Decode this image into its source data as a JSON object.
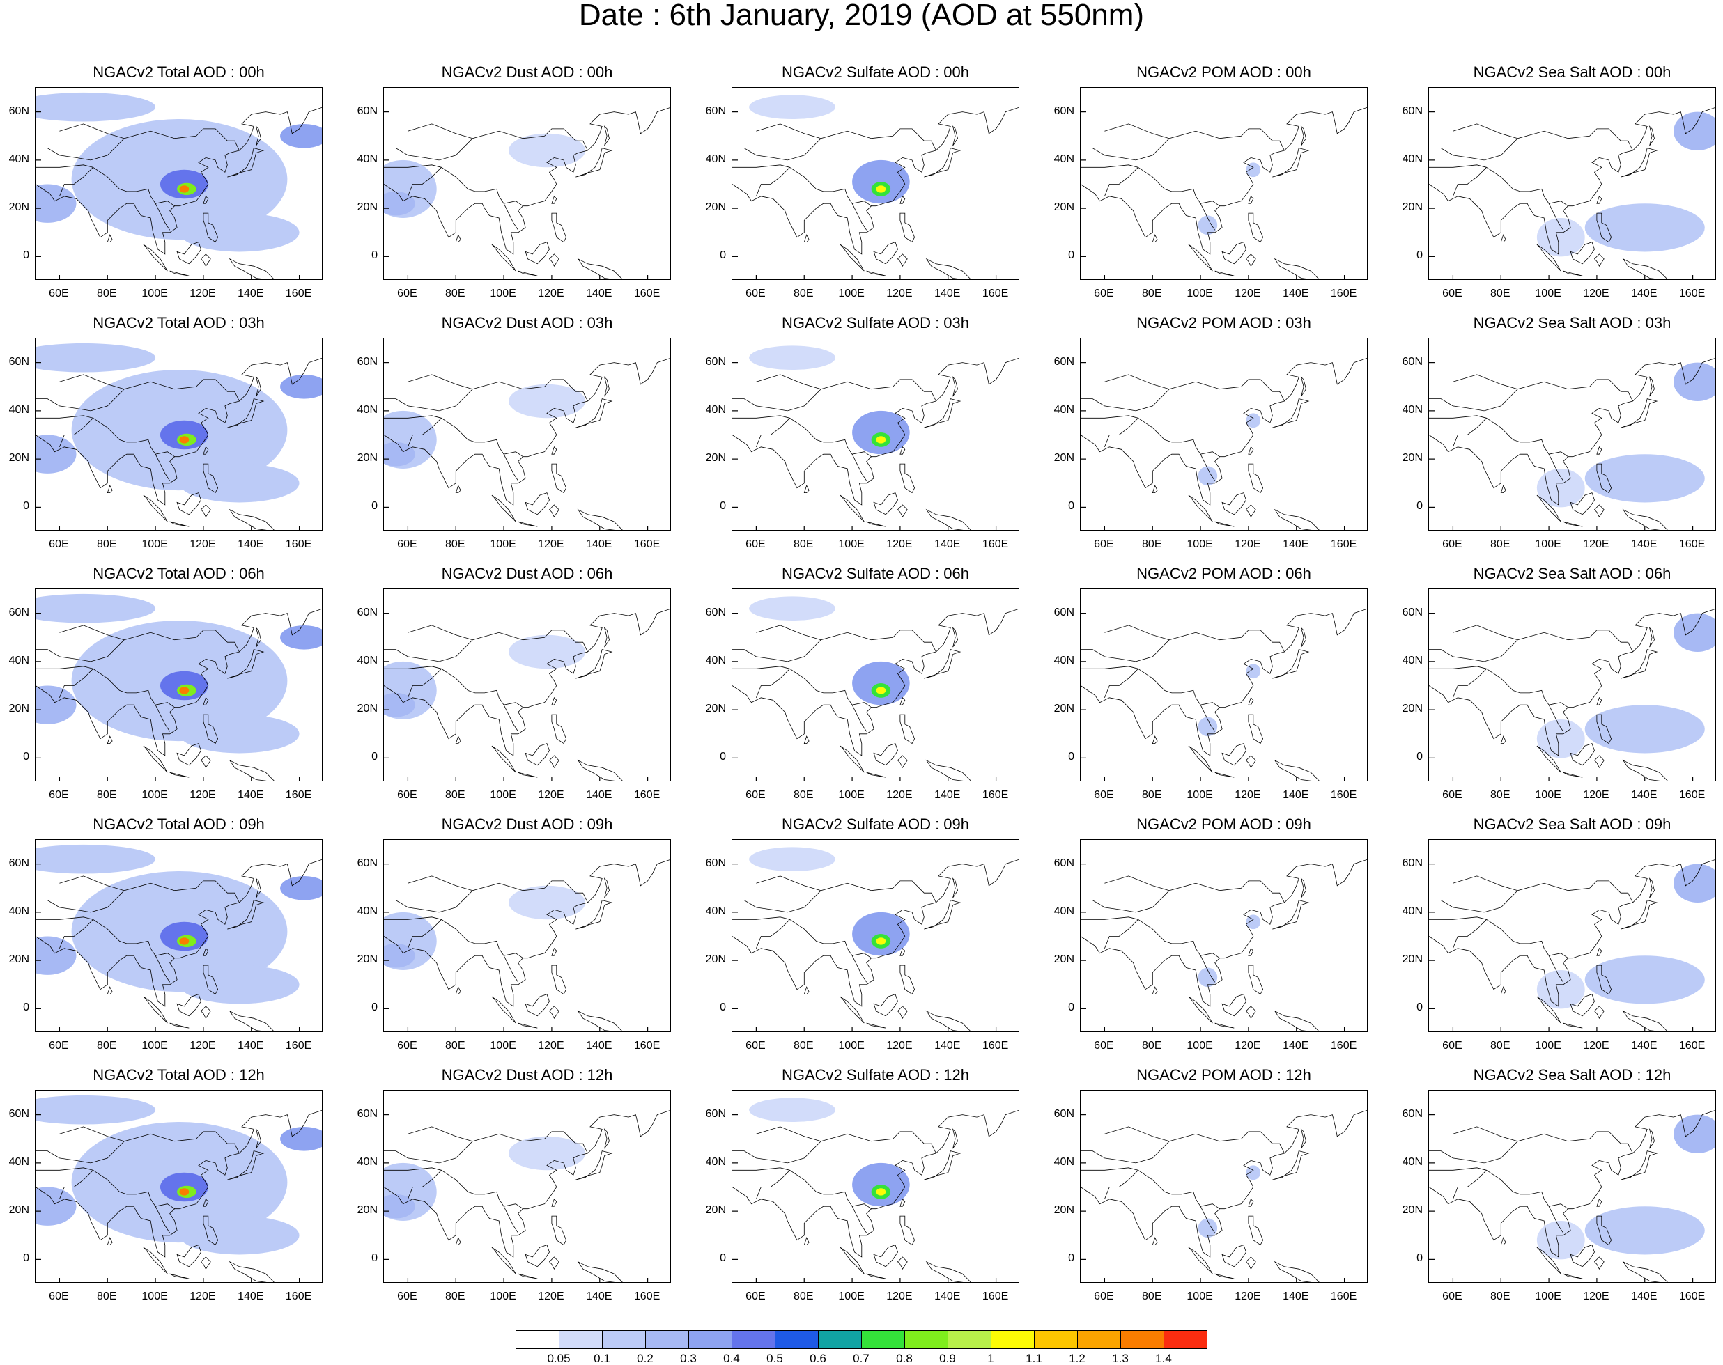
{
  "title": "Date : 6th January, 2019 (AOD at 550nm)",
  "chart_data": {
    "type": "heatmap",
    "grid": {
      "columns": [
        "Total",
        "Dust",
        "Sulfate",
        "POM",
        "Sea Salt"
      ],
      "rows": [
        "00h",
        "03h",
        "06h",
        "09h",
        "12h"
      ]
    },
    "panel_titles": [
      [
        "NGACv2 Total AOD : 00h",
        "NGACv2 Dust AOD : 00h",
        "NGACv2 Sulfate AOD : 00h",
        "NGACv2 POM AOD : 00h",
        "NGACv2 Sea Salt AOD : 00h"
      ],
      [
        "NGACv2 Total AOD : 03h",
        "NGACv2 Dust AOD : 03h",
        "NGACv2 Sulfate AOD : 03h",
        "NGACv2 POM AOD : 03h",
        "NGACv2 Sea Salt AOD : 03h"
      ],
      [
        "NGACv2 Total AOD : 06h",
        "NGACv2 Dust AOD : 06h",
        "NGACv2 Sulfate AOD : 06h",
        "NGACv2 POM AOD : 06h",
        "NGACv2 Sea Salt AOD : 06h"
      ],
      [
        "NGACv2 Total AOD : 09h",
        "NGACv2 Dust AOD : 09h",
        "NGACv2 Sulfate AOD : 09h",
        "NGACv2 POM AOD : 09h",
        "NGACv2 Sea Salt  AOD : 09h"
      ],
      [
        "NGACv2 Total AOD  : 12h",
        "NGACv2 Dust AOD : 12h",
        "NGACv2 Sulfate AOD : 12h",
        "NGACv2 POM  AOD : 12h",
        "NGACv2 Sea Salt  AOD : 12h"
      ]
    ],
    "x_ticks": [
      "60E",
      "80E",
      "100E",
      "120E",
      "140E",
      "160E"
    ],
    "x_tick_values": [
      60,
      80,
      100,
      120,
      140,
      160
    ],
    "y_ticks": [
      "60N",
      "40N",
      "20N",
      "0"
    ],
    "y_tick_values": [
      60,
      40,
      20,
      0
    ],
    "xlim": [
      50,
      170
    ],
    "ylim": [
      -10,
      70
    ],
    "colorbar": {
      "labels": [
        "0.05",
        "0.1",
        "0.2",
        "0.3",
        "0.4",
        "0.5",
        "0.6",
        "0.7",
        "0.8",
        "0.9",
        "1",
        "1.1",
        "1.2",
        "1.3",
        "1.4"
      ],
      "colors": [
        "#ffffff",
        "#d2dcfa",
        "#bccbf7",
        "#a7b9f4",
        "#8ea3f1",
        "#6474ec",
        "#1e5ae6",
        "#11a3a3",
        "#34e23a",
        "#7fed1d",
        "#b8f04a",
        "#fcfb06",
        "#fcc500",
        "#fba400",
        "#fa7d00",
        "#fb2d10"
      ]
    },
    "features": {
      "Total": [
        {
          "lon": 110,
          "lat": 32,
          "rx": 45,
          "ry": 25,
          "level": 2
        },
        {
          "lon": 70,
          "lat": 62,
          "rx": 30,
          "ry": 6,
          "level": 2
        },
        {
          "lon": 55,
          "lat": 22,
          "rx": 12,
          "ry": 8,
          "level": 3
        },
        {
          "lon": 162,
          "lat": 50,
          "rx": 10,
          "ry": 5,
          "level": 4
        },
        {
          "lon": 112,
          "lat": 30,
          "rx": 10,
          "ry": 6,
          "level": 5
        },
        {
          "lon": 113,
          "lat": 28,
          "rx": 4,
          "ry": 2.5,
          "level": 9
        },
        {
          "lon": 112,
          "lat": 28,
          "rx": 2,
          "ry": 1.5,
          "level": 14
        },
        {
          "lon": 135,
          "lat": 10,
          "rx": 25,
          "ry": 8,
          "level": 2
        }
      ],
      "Dust": [
        {
          "lon": 58,
          "lat": 28,
          "rx": 14,
          "ry": 12,
          "level": 2
        },
        {
          "lon": 55,
          "lat": 22,
          "rx": 8,
          "ry": 5,
          "level": 3
        },
        {
          "lon": 118,
          "lat": 44,
          "rx": 16,
          "ry": 7,
          "level": 1
        }
      ],
      "Sulfate": [
        {
          "lon": 112,
          "lat": 31,
          "rx": 12,
          "ry": 9,
          "level": 4
        },
        {
          "lon": 112,
          "lat": 28,
          "rx": 4,
          "ry": 3,
          "level": 8
        },
        {
          "lon": 112,
          "lat": 28,
          "rx": 2,
          "ry": 1.5,
          "level": 11
        },
        {
          "lon": 75,
          "lat": 62,
          "rx": 18,
          "ry": 5,
          "level": 1
        }
      ],
      "POM": [
        {
          "lon": 103,
          "lat": 13,
          "rx": 4,
          "ry": 4,
          "level": 2
        },
        {
          "lon": 122,
          "lat": 36,
          "rx": 3,
          "ry": 3,
          "level": 2
        }
      ],
      "Sea Salt": [
        {
          "lon": 162,
          "lat": 52,
          "rx": 10,
          "ry": 8,
          "level": 3
        },
        {
          "lon": 140,
          "lat": 12,
          "rx": 25,
          "ry": 10,
          "level": 2
        },
        {
          "lon": 105,
          "lat": 8,
          "rx": 10,
          "ry": 8,
          "level": 1
        }
      ]
    }
  }
}
